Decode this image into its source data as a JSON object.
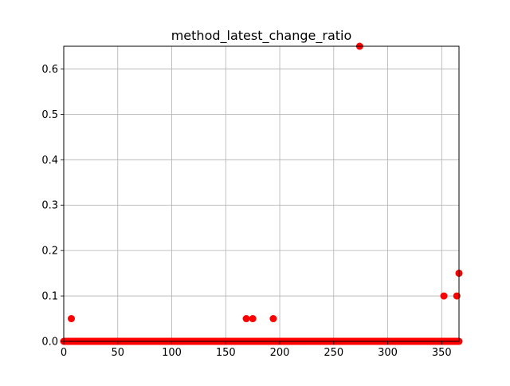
{
  "chart_data": {
    "type": "scatter",
    "title": "method_latest_change_ratio",
    "xlabel": "",
    "ylabel": "",
    "xlim": [
      0,
      366
    ],
    "ylim": [
      0,
      0.65
    ],
    "xticks": [
      0,
      50,
      100,
      150,
      200,
      250,
      300,
      350
    ],
    "yticks": [
      0.0,
      0.1,
      0.2,
      0.3,
      0.4,
      0.5,
      0.6
    ],
    "xtick_labels": [
      "0",
      "50",
      "100",
      "150",
      "200",
      "250",
      "300",
      "350"
    ],
    "ytick_labels": [
      "0.0",
      "0.1",
      "0.2",
      "0.3",
      "0.4",
      "0.5",
      "0.6"
    ],
    "grid": true,
    "marker_color": "#ff0000",
    "baseline": {
      "y": 0.0,
      "x_start": 0,
      "x_end": 366
    },
    "points": [
      {
        "x": 7,
        "y": 0.05
      },
      {
        "x": 169,
        "y": 0.05
      },
      {
        "x": 175,
        "y": 0.05
      },
      {
        "x": 194,
        "y": 0.05
      },
      {
        "x": 274,
        "y": 0.65
      },
      {
        "x": 352,
        "y": 0.1
      },
      {
        "x": 364,
        "y": 0.1
      },
      {
        "x": 366,
        "y": 0.15
      }
    ]
  }
}
